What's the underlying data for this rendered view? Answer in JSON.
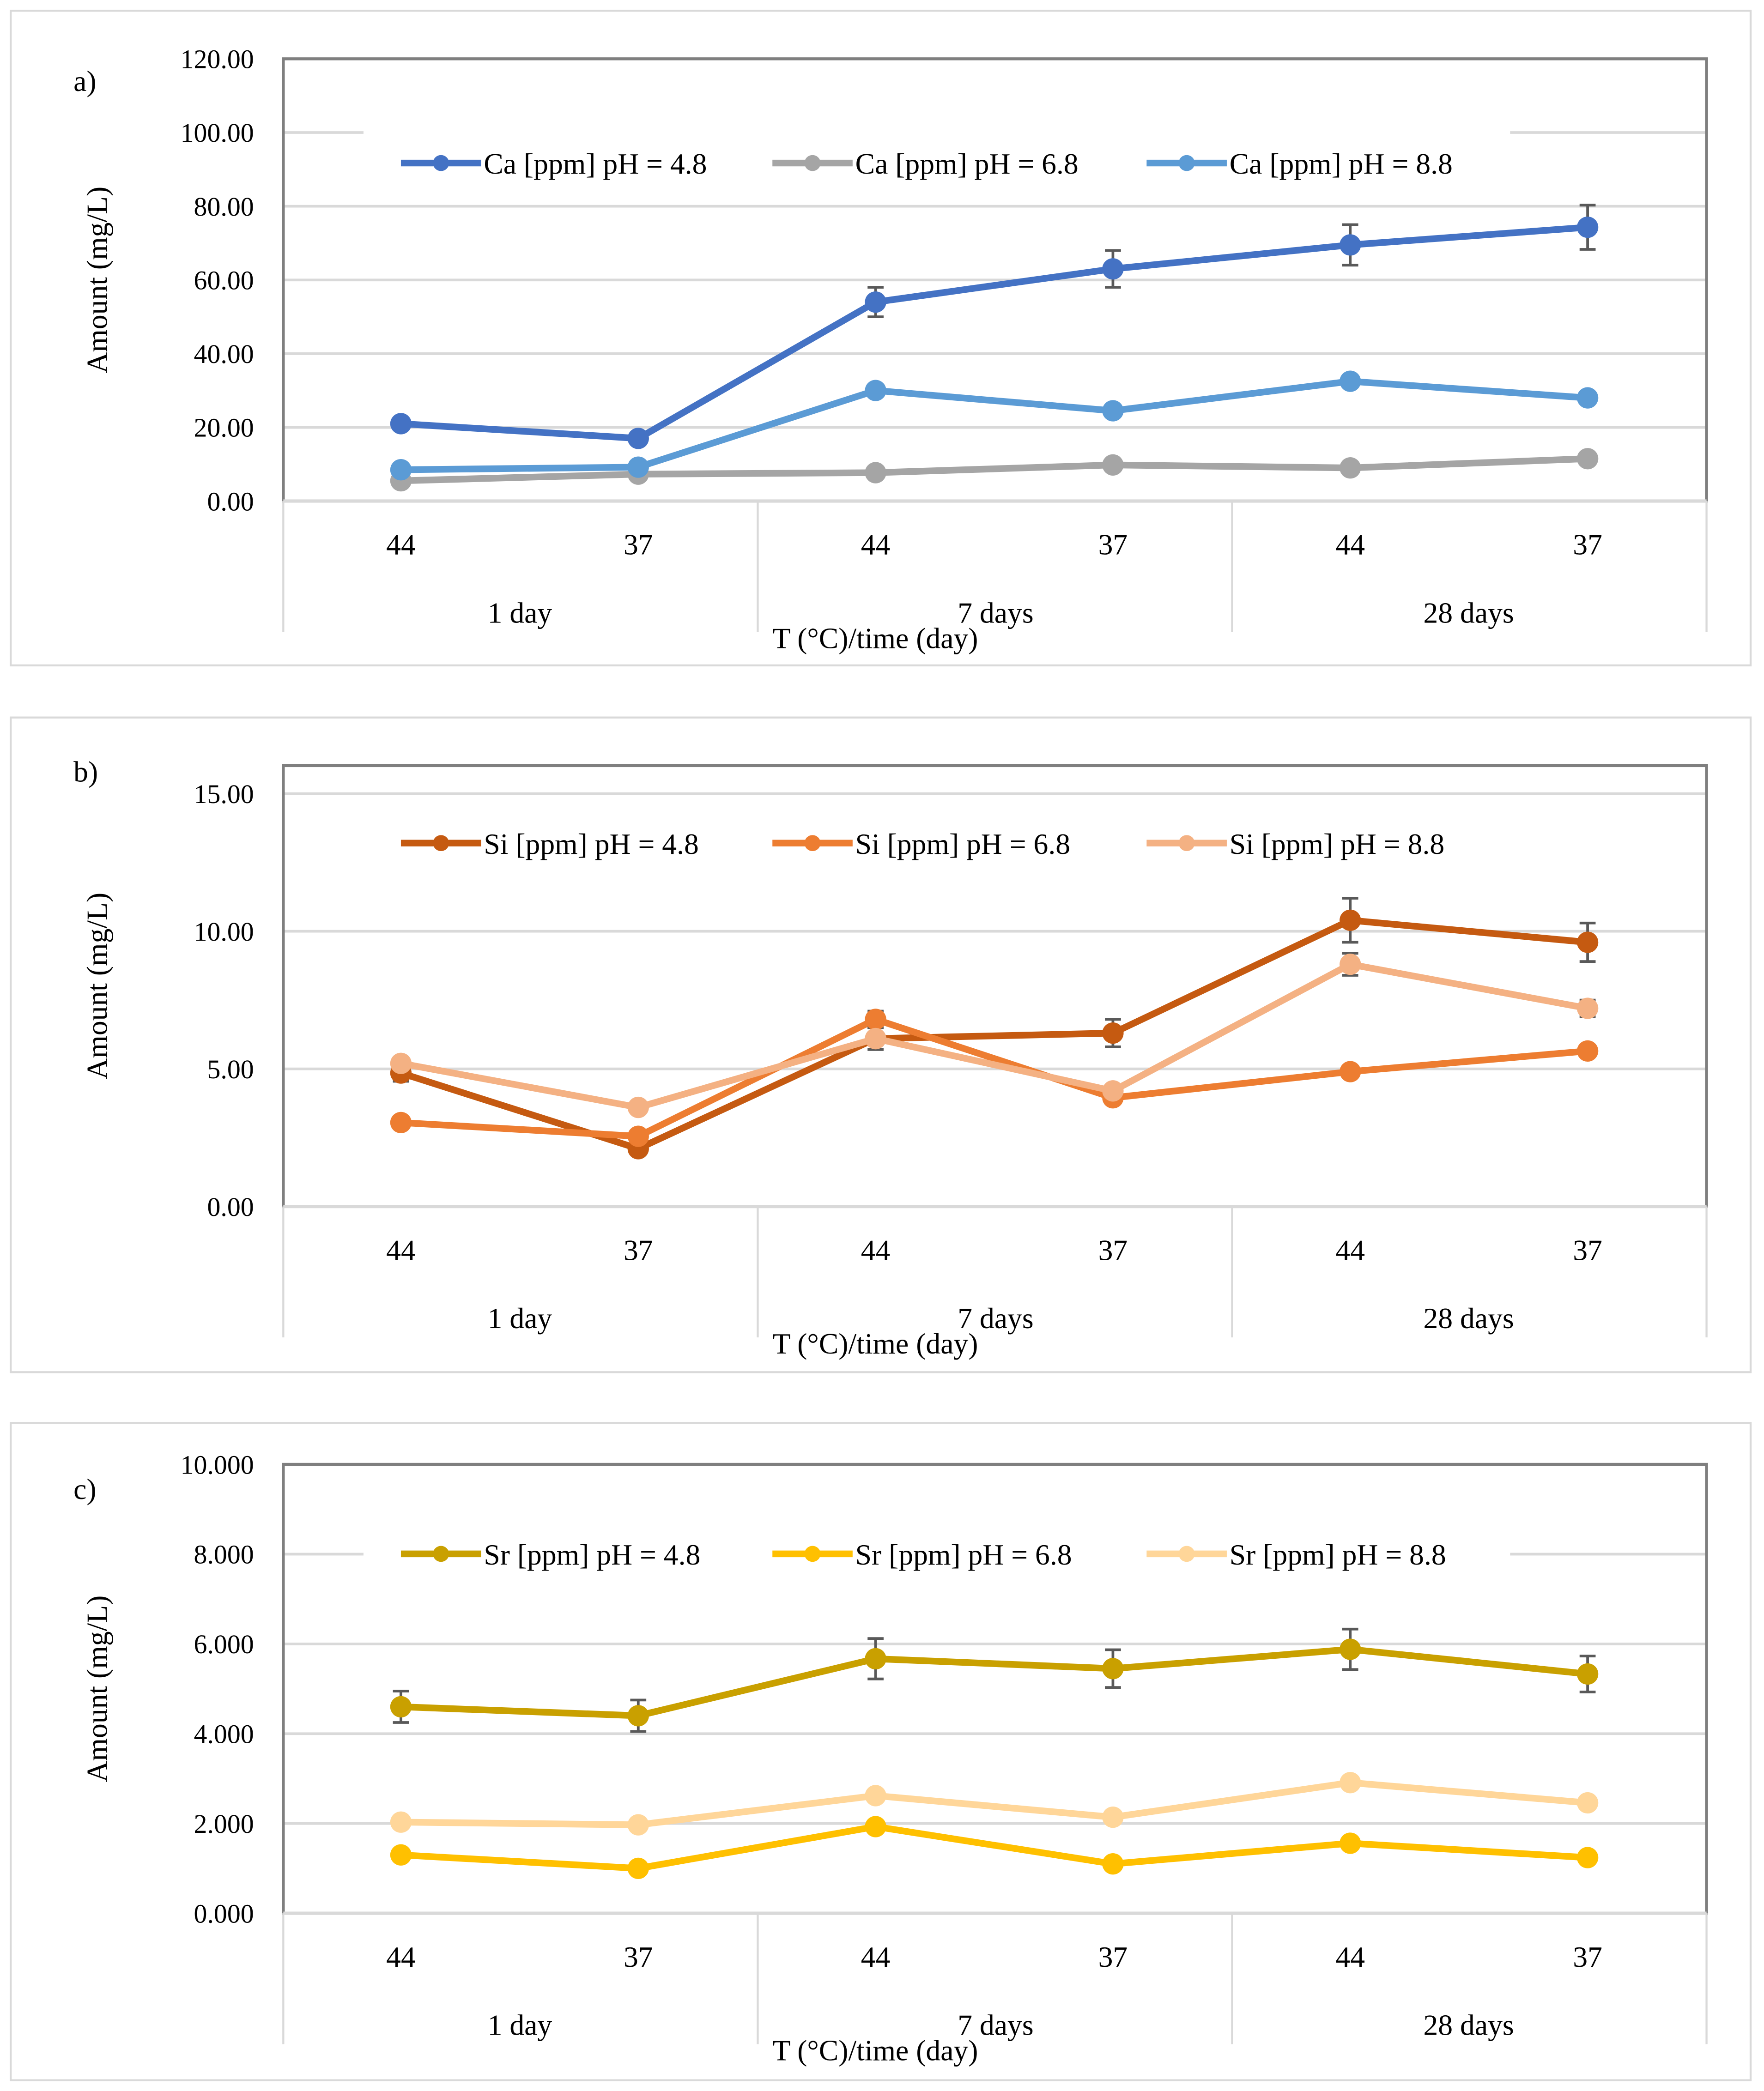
{
  "chart_data": [
    {
      "type": "line",
      "panel_label": "a)",
      "xlabel": "T (°C)/time (day)",
      "ylabel": "Amount (mg/L)",
      "categories": [
        "44",
        "37",
        "44",
        "37",
        "44",
        "37"
      ],
      "groups": [
        "1 day",
        "7 days",
        "28 days"
      ],
      "ylim": [
        0,
        120
      ],
      "yticks": [
        0,
        20,
        40,
        60,
        80,
        100,
        120
      ],
      "ytick_labels": [
        "0.00",
        "20.00",
        "40.00",
        "60.00",
        "80.00",
        "100.00",
        "120.00"
      ],
      "legend_position": "top",
      "series": [
        {
          "name": "Ca [ppm] pH = 4.8",
          "color": "#4472C4",
          "values": [
            21.0,
            17.0,
            54.0,
            63.0,
            69.5,
            74.3
          ],
          "errors": [
            0,
            0,
            4,
            5,
            5.5,
            6
          ]
        },
        {
          "name": "Ca [ppm] pH = 6.8",
          "color": "#A5A5A5",
          "values": [
            5.5,
            7.3,
            7.7,
            9.8,
            9.0,
            11.5
          ],
          "errors": [
            0,
            0,
            0,
            0,
            0,
            0
          ]
        },
        {
          "name": "Ca [ppm] pH = 8.8",
          "color": "#5B9BD5",
          "values": [
            8.5,
            9.2,
            30.0,
            24.5,
            32.5,
            28.0
          ],
          "errors": [
            0,
            0,
            0,
            0,
            0,
            0
          ]
        }
      ]
    },
    {
      "type": "line",
      "panel_label": "b)",
      "xlabel": "T (°C)/time (day)",
      "ylabel": "Amount (mg/L)",
      "categories": [
        "44",
        "37",
        "44",
        "37",
        "44",
        "37"
      ],
      "groups": [
        "1 day",
        "7 days",
        "28 days"
      ],
      "ylim": [
        0,
        16
      ],
      "yticks": [
        0,
        5,
        10,
        15
      ],
      "ytick_labels": [
        "0.00",
        "5.00",
        "10.00",
        "15.00"
      ],
      "legend_position": "top",
      "series": [
        {
          "name": "Si [ppm] pH = 4.8",
          "color": "#C55A11",
          "values": [
            4.85,
            2.1,
            6.1,
            6.3,
            10.4,
            9.6
          ],
          "errors": [
            0.3,
            0,
            0.4,
            0.5,
            0.8,
            0.7
          ]
        },
        {
          "name": "Si [ppm] pH = 6.8",
          "color": "#ED7D31",
          "values": [
            3.05,
            2.55,
            6.8,
            3.95,
            4.9,
            5.65
          ],
          "errors": [
            0,
            0,
            0.3,
            0,
            0,
            0
          ]
        },
        {
          "name": "Si [ppm] pH = 8.8",
          "color": "#F4B183",
          "values": [
            5.2,
            3.6,
            6.1,
            4.2,
            8.8,
            7.2
          ],
          "errors": [
            0.2,
            0,
            0,
            0,
            0.4,
            0.3
          ]
        }
      ]
    },
    {
      "type": "line",
      "panel_label": "c)",
      "xlabel": "T (°C)/time (day)",
      "ylabel": "Amount (mg/L)",
      "categories": [
        "44",
        "37",
        "44",
        "37",
        "44",
        "37"
      ],
      "groups": [
        "1 day",
        "7 days",
        "28 days"
      ],
      "ylim": [
        0,
        10
      ],
      "yticks": [
        0,
        2,
        4,
        6,
        8,
        10
      ],
      "ytick_labels": [
        "0.000",
        "2.000",
        "4.000",
        "6.000",
        "8.000",
        "10.000"
      ],
      "legend_position": "top",
      "series": [
        {
          "name": "Sr [ppm] pH = 4.8",
          "color": "#C9A000",
          "values": [
            4.6,
            4.4,
            5.67,
            5.45,
            5.88,
            5.33
          ],
          "errors": [
            0.35,
            0.35,
            0.45,
            0.42,
            0.45,
            0.4
          ]
        },
        {
          "name": "Sr [ppm] pH = 6.8",
          "color": "#FFC000",
          "values": [
            1.3,
            1.0,
            1.93,
            1.1,
            1.56,
            1.24
          ],
          "errors": [
            0,
            0,
            0,
            0,
            0,
            0
          ]
        },
        {
          "name": "Sr [ppm] pH = 8.8",
          "color": "#FFD699",
          "values": [
            2.03,
            1.97,
            2.62,
            2.14,
            2.91,
            2.46
          ],
          "errors": [
            0,
            0,
            0,
            0,
            0,
            0
          ]
        }
      ]
    }
  ]
}
